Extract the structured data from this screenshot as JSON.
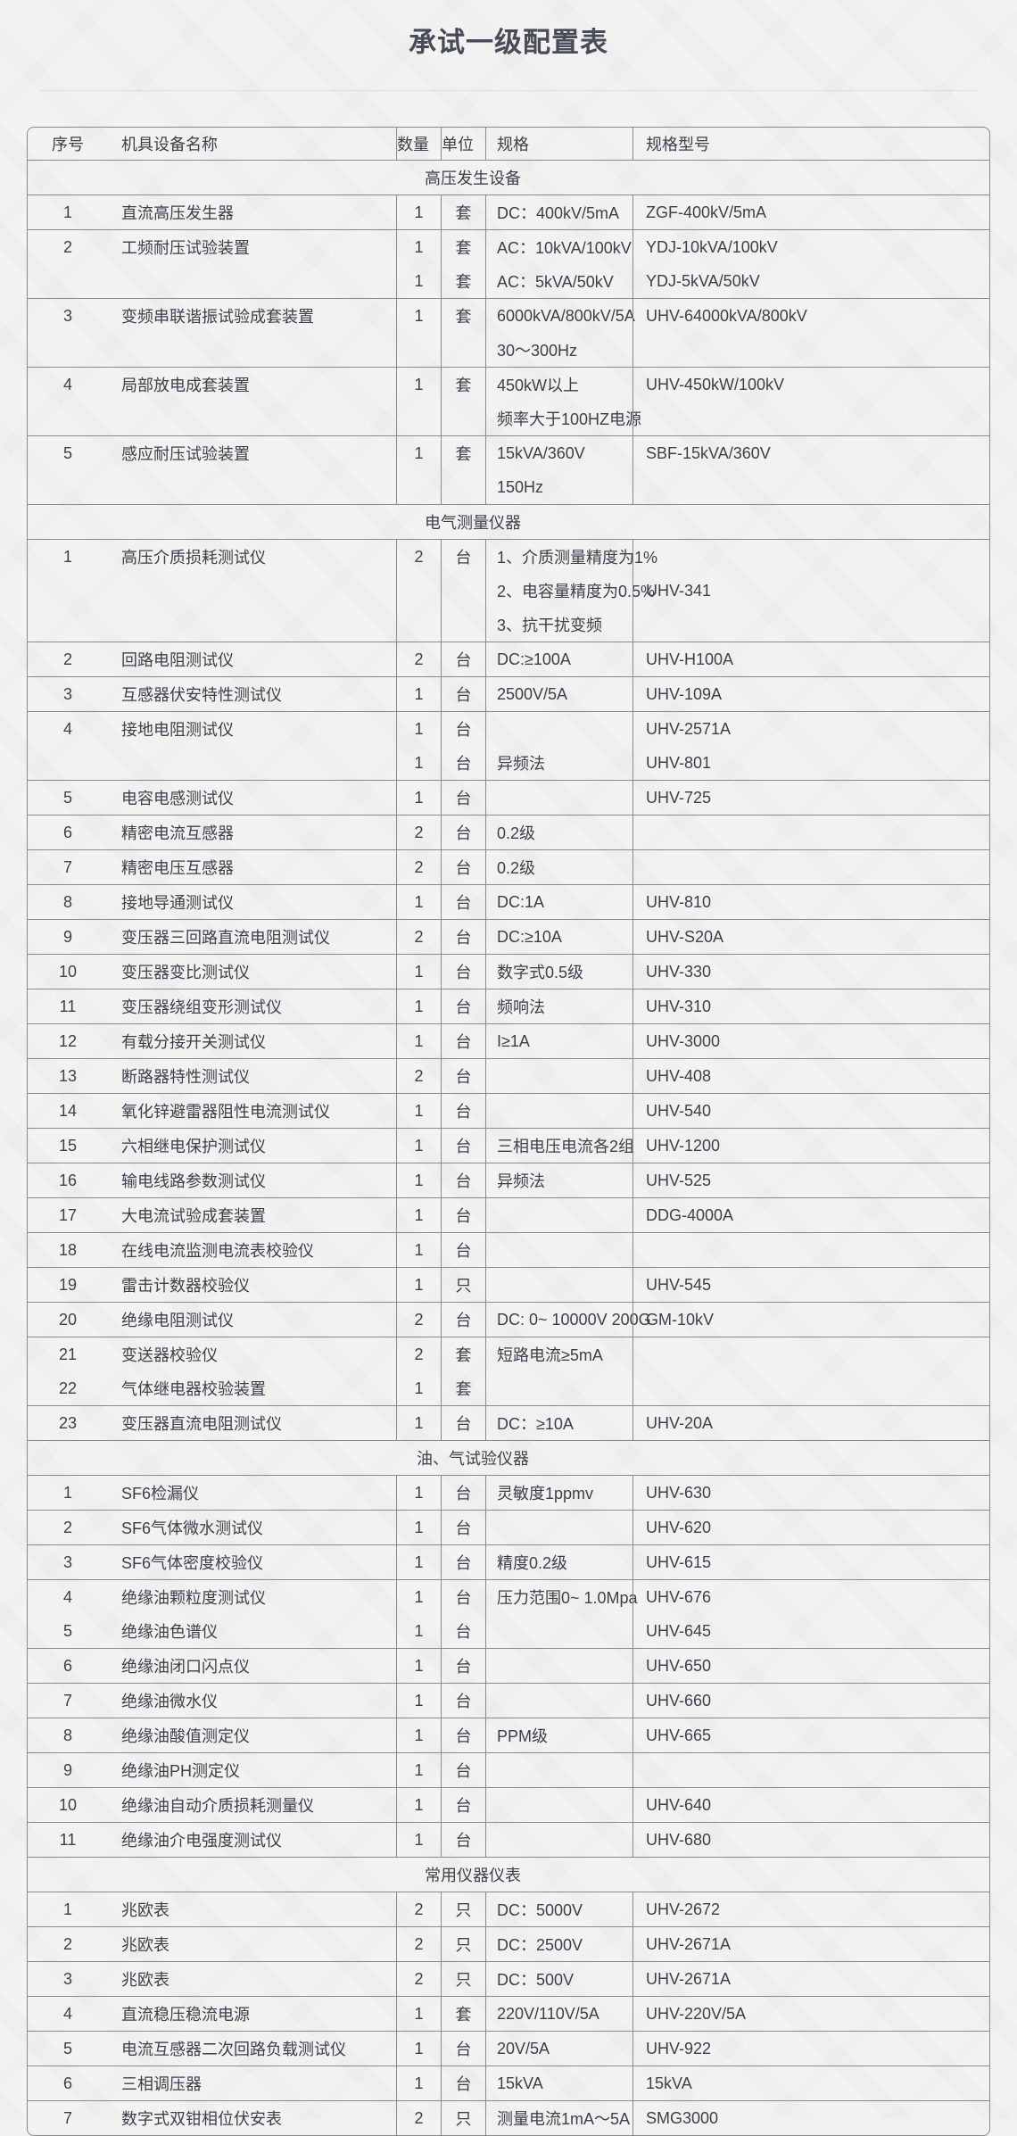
{
  "page": {
    "title": "承试一级配置表"
  },
  "table": {
    "columns": {
      "no": "序号",
      "name": "机具设备名称",
      "qty": "数量",
      "unit": "单位",
      "spec": "规格",
      "model": "规格型号"
    },
    "sections": [
      {
        "label": "高压发生设备",
        "rows": [
          {
            "no": [
              "1"
            ],
            "name": [
              "直流高压发生器"
            ],
            "qty": [
              "1"
            ],
            "unit": [
              "套"
            ],
            "spec": [
              "DC：400kV/5mA"
            ],
            "model": [
              "ZGF-400kV/5mA"
            ]
          },
          {
            "no": [
              "2"
            ],
            "name": [
              "工频耐压试验装置"
            ],
            "qty": [
              "1",
              "1"
            ],
            "unit": [
              "套",
              "套"
            ],
            "spec": [
              "AC：10kVA/100kV",
              "AC：5kVA/50kV"
            ],
            "model": [
              "YDJ-10kVA/100kV",
              "YDJ-5kVA/50kV"
            ]
          },
          {
            "no": [
              "3"
            ],
            "name": [
              "变频串联谐振试验成套装置"
            ],
            "qty": [
              "1"
            ],
            "unit": [
              "套"
            ],
            "spec": [
              "6000kVA/800kV/5A",
              "30～300Hz"
            ],
            "model": [
              "UHV-64000kVA/800kV"
            ]
          },
          {
            "no": [
              "4"
            ],
            "name": [
              "局部放电成套装置"
            ],
            "qty": [
              "1"
            ],
            "unit": [
              "套"
            ],
            "spec": [
              "450kW以上",
              "频率大于100HZ电源"
            ],
            "model": [
              "UHV-450kW/100kV"
            ]
          },
          {
            "no": [
              "5"
            ],
            "name": [
              "感应耐压试验装置"
            ],
            "qty": [
              "1"
            ],
            "unit": [
              "套"
            ],
            "spec": [
              "15kVA/360V",
              "150Hz"
            ],
            "model": [
              "SBF-15kVA/360V"
            ]
          }
        ]
      },
      {
        "label": "电气测量仪器",
        "rows": [
          {
            "no": [
              "1"
            ],
            "name": [
              "高压介质损耗测试仪"
            ],
            "qty": [
              "2"
            ],
            "unit": [
              "台"
            ],
            "spec": [
              "1、介质测量精度为1%",
              "2、电容量精度为0.5%",
              "3、抗干扰变频"
            ],
            "model": [
              "",
              "UHV-341"
            ]
          },
          {
            "no": [
              "2"
            ],
            "name": [
              "回路电阻测试仪"
            ],
            "qty": [
              "2"
            ],
            "unit": [
              "台"
            ],
            "spec": [
              "DC:≥100A"
            ],
            "model": [
              "UHV-H100A"
            ]
          },
          {
            "no": [
              "3"
            ],
            "name": [
              "互感器伏安特性测试仪"
            ],
            "qty": [
              "1"
            ],
            "unit": [
              "台"
            ],
            "spec": [
              "2500V/5A"
            ],
            "model": [
              "UHV-109A"
            ]
          },
          {
            "no": [
              "4"
            ],
            "name": [
              "接地电阻测试仪"
            ],
            "qty": [
              "1",
              "1"
            ],
            "unit": [
              "台",
              "台"
            ],
            "spec": [
              "",
              "异频法"
            ],
            "model": [
              "UHV-2571A",
              "UHV-801"
            ]
          },
          {
            "no": [
              "5"
            ],
            "name": [
              "电容电感测试仪"
            ],
            "qty": [
              "1"
            ],
            "unit": [
              "台"
            ],
            "spec": [
              ""
            ],
            "model": [
              "UHV-725"
            ]
          },
          {
            "no": [
              "6"
            ],
            "name": [
              "精密电流互感器"
            ],
            "qty": [
              "2"
            ],
            "unit": [
              "台"
            ],
            "spec": [
              "0.2级"
            ],
            "model": [
              ""
            ]
          },
          {
            "no": [
              "7"
            ],
            "name": [
              "精密电压互感器"
            ],
            "qty": [
              "2"
            ],
            "unit": [
              "台"
            ],
            "spec": [
              "0.2级"
            ],
            "model": [
              ""
            ]
          },
          {
            "no": [
              "8"
            ],
            "name": [
              "接地导通测试仪"
            ],
            "qty": [
              "1"
            ],
            "unit": [
              "台"
            ],
            "spec": [
              "DC:1A"
            ],
            "model": [
              "UHV-810"
            ]
          },
          {
            "no": [
              "9"
            ],
            "name": [
              "变压器三回路直流电阻测试仪"
            ],
            "qty": [
              "2"
            ],
            "unit": [
              "台"
            ],
            "spec": [
              "DC:≥10A"
            ],
            "model": [
              "UHV-S20A"
            ]
          },
          {
            "no": [
              "10"
            ],
            "name": [
              "变压器变比测试仪"
            ],
            "qty": [
              "1"
            ],
            "unit": [
              "台"
            ],
            "spec": [
              "数字式0.5级"
            ],
            "model": [
              "UHV-330"
            ]
          },
          {
            "no": [
              "11"
            ],
            "name": [
              "变压器绕组变形测试仪"
            ],
            "qty": [
              "1"
            ],
            "unit": [
              "台"
            ],
            "spec": [
              "频响法"
            ],
            "model": [
              "UHV-310"
            ]
          },
          {
            "no": [
              "12"
            ],
            "name": [
              "有载分接开关测试仪"
            ],
            "qty": [
              "1"
            ],
            "unit": [
              "台"
            ],
            "spec": [
              "I≥1A"
            ],
            "model": [
              "UHV-3000"
            ]
          },
          {
            "no": [
              "13"
            ],
            "name": [
              "断路器特性测试仪"
            ],
            "qty": [
              "2"
            ],
            "unit": [
              "台"
            ],
            "spec": [
              ""
            ],
            "model": [
              "UHV-408"
            ]
          },
          {
            "no": [
              "14"
            ],
            "name": [
              "氧化锌避雷器阻性电流测试仪"
            ],
            "qty": [
              "1"
            ],
            "unit": [
              "台"
            ],
            "spec": [
              ""
            ],
            "model": [
              "UHV-540"
            ]
          },
          {
            "no": [
              "15"
            ],
            "name": [
              "六相继电保护测试仪"
            ],
            "qty": [
              "1"
            ],
            "unit": [
              "台"
            ],
            "spec": [
              "三相电压电流各2组"
            ],
            "model": [
              "UHV-1200"
            ]
          },
          {
            "no": [
              "16"
            ],
            "name": [
              "输电线路参数测试仪"
            ],
            "qty": [
              "1"
            ],
            "unit": [
              "台"
            ],
            "spec": [
              "异频法"
            ],
            "model": [
              "UHV-525"
            ]
          },
          {
            "no": [
              "17"
            ],
            "name": [
              "大电流试验成套装置"
            ],
            "qty": [
              "1"
            ],
            "unit": [
              "台"
            ],
            "spec": [
              ""
            ],
            "model": [
              "DDG-4000A"
            ]
          },
          {
            "no": [
              "18"
            ],
            "name": [
              "在线电流监测电流表校验仪"
            ],
            "qty": [
              "1"
            ],
            "unit": [
              "台"
            ],
            "spec": [
              ""
            ],
            "model": [
              ""
            ]
          },
          {
            "no": [
              "19"
            ],
            "name": [
              "雷击计数器校验仪"
            ],
            "qty": [
              "1"
            ],
            "unit": [
              "只"
            ],
            "spec": [
              ""
            ],
            "model": [
              "UHV-545"
            ]
          },
          {
            "no": [
              "20"
            ],
            "name": [
              "绝缘电阻测试仪"
            ],
            "qty": [
              "2"
            ],
            "unit": [
              "台"
            ],
            "spec": [
              "DC: 0~ 10000V 200G"
            ],
            "model": [
              "GM-10kV"
            ]
          },
          {
            "no": [
              "21",
              "22"
            ],
            "name": [
              "变送器校验仪",
              "气体继电器校验装置"
            ],
            "qty": [
              "2",
              "1"
            ],
            "unit": [
              "套",
              "套"
            ],
            "spec": [
              "短路电流≥5mA",
              ""
            ],
            "model": [
              "",
              ""
            ]
          },
          {
            "no": [
              "23"
            ],
            "name": [
              "变压器直流电阻测试仪"
            ],
            "qty": [
              "1"
            ],
            "unit": [
              "台"
            ],
            "spec": [
              "DC：≥10A"
            ],
            "model": [
              "UHV-20A"
            ]
          }
        ]
      },
      {
        "label": "油、气试验仪器",
        "rows": [
          {
            "no": [
              "1"
            ],
            "name": [
              "SF6检漏仪"
            ],
            "qty": [
              "1"
            ],
            "unit": [
              "台"
            ],
            "spec": [
              "灵敏度1ppmv"
            ],
            "model": [
              "UHV-630"
            ]
          },
          {
            "no": [
              "2"
            ],
            "name": [
              "SF6气体微水测试仪"
            ],
            "qty": [
              "1"
            ],
            "unit": [
              "台"
            ],
            "spec": [
              ""
            ],
            "model": [
              "UHV-620"
            ]
          },
          {
            "no": [
              "3"
            ],
            "name": [
              "SF6气体密度校验仪"
            ],
            "qty": [
              "1"
            ],
            "unit": [
              "台"
            ],
            "spec": [
              "精度0.2级"
            ],
            "model": [
              "UHV-615"
            ]
          },
          {
            "no": [
              "4",
              "5"
            ],
            "name": [
              "绝缘油颗粒度测试仪",
              "绝缘油色谱仪"
            ],
            "qty": [
              "1",
              "1"
            ],
            "unit": [
              "台",
              "台"
            ],
            "spec": [
              "压力范围0~ 1.0Mpa",
              ""
            ],
            "model": [
              "UHV-676",
              "UHV-645"
            ]
          },
          {
            "no": [
              "6"
            ],
            "name": [
              "绝缘油闭口闪点仪"
            ],
            "qty": [
              "1"
            ],
            "unit": [
              "台"
            ],
            "spec": [
              ""
            ],
            "model": [
              "UHV-650"
            ]
          },
          {
            "no": [
              "7"
            ],
            "name": [
              "绝缘油微水仪"
            ],
            "qty": [
              "1"
            ],
            "unit": [
              "台"
            ],
            "spec": [
              ""
            ],
            "model": [
              "UHV-660"
            ]
          },
          {
            "no": [
              "8"
            ],
            "name": [
              "绝缘油酸值测定仪"
            ],
            "qty": [
              "1"
            ],
            "unit": [
              "台"
            ],
            "spec": [
              "PPM级"
            ],
            "model": [
              "UHV-665"
            ]
          },
          {
            "no": [
              "9"
            ],
            "name": [
              "绝缘油PH测定仪"
            ],
            "qty": [
              "1"
            ],
            "unit": [
              "台"
            ],
            "spec": [
              ""
            ],
            "model": [
              ""
            ]
          },
          {
            "no": [
              "10"
            ],
            "name": [
              "绝缘油自动介质损耗测量仪"
            ],
            "qty": [
              "1"
            ],
            "unit": [
              "台"
            ],
            "spec": [
              ""
            ],
            "model": [
              "UHV-640"
            ]
          },
          {
            "no": [
              "11"
            ],
            "name": [
              "绝缘油介电强度测试仪"
            ],
            "qty": [
              "1"
            ],
            "unit": [
              "台"
            ],
            "spec": [
              ""
            ],
            "model": [
              "UHV-680"
            ]
          }
        ]
      },
      {
        "label": "常用仪器仪表",
        "rows": [
          {
            "no": [
              "1"
            ],
            "name": [
              "兆欧表"
            ],
            "qty": [
              "2"
            ],
            "unit": [
              "只"
            ],
            "spec": [
              "DC：5000V"
            ],
            "model": [
              "UHV-2672"
            ]
          },
          {
            "no": [
              "2"
            ],
            "name": [
              "兆欧表"
            ],
            "qty": [
              "2"
            ],
            "unit": [
              "只"
            ],
            "spec": [
              "DC：2500V"
            ],
            "model": [
              "UHV-2671A"
            ]
          },
          {
            "no": [
              "3"
            ],
            "name": [
              "兆欧表"
            ],
            "qty": [
              "2"
            ],
            "unit": [
              "只"
            ],
            "spec": [
              "DC：500V"
            ],
            "model": [
              "UHV-2671A"
            ]
          },
          {
            "no": [
              "4"
            ],
            "name": [
              "直流稳压稳流电源"
            ],
            "qty": [
              "1"
            ],
            "unit": [
              "套"
            ],
            "spec": [
              "220V/110V/5A"
            ],
            "model": [
              "UHV-220V/5A"
            ]
          },
          {
            "no": [
              "5"
            ],
            "name": [
              "电流互感器二次回路负载测试仪"
            ],
            "qty": [
              "1"
            ],
            "unit": [
              "台"
            ],
            "spec": [
              "20V/5A"
            ],
            "model": [
              "UHV-922"
            ]
          },
          {
            "no": [
              "6"
            ],
            "name": [
              "三相调压器"
            ],
            "qty": [
              "1"
            ],
            "unit": [
              "台"
            ],
            "spec": [
              "15kVA"
            ],
            "model": [
              "15kVA"
            ]
          },
          {
            "no": [
              "7"
            ],
            "name": [
              "数字式双钳相位伏安表"
            ],
            "qty": [
              "2"
            ],
            "unit": [
              "只"
            ],
            "spec": [
              "测量电流1mA～5A"
            ],
            "model": [
              "SMG3000"
            ]
          }
        ]
      }
    ]
  }
}
